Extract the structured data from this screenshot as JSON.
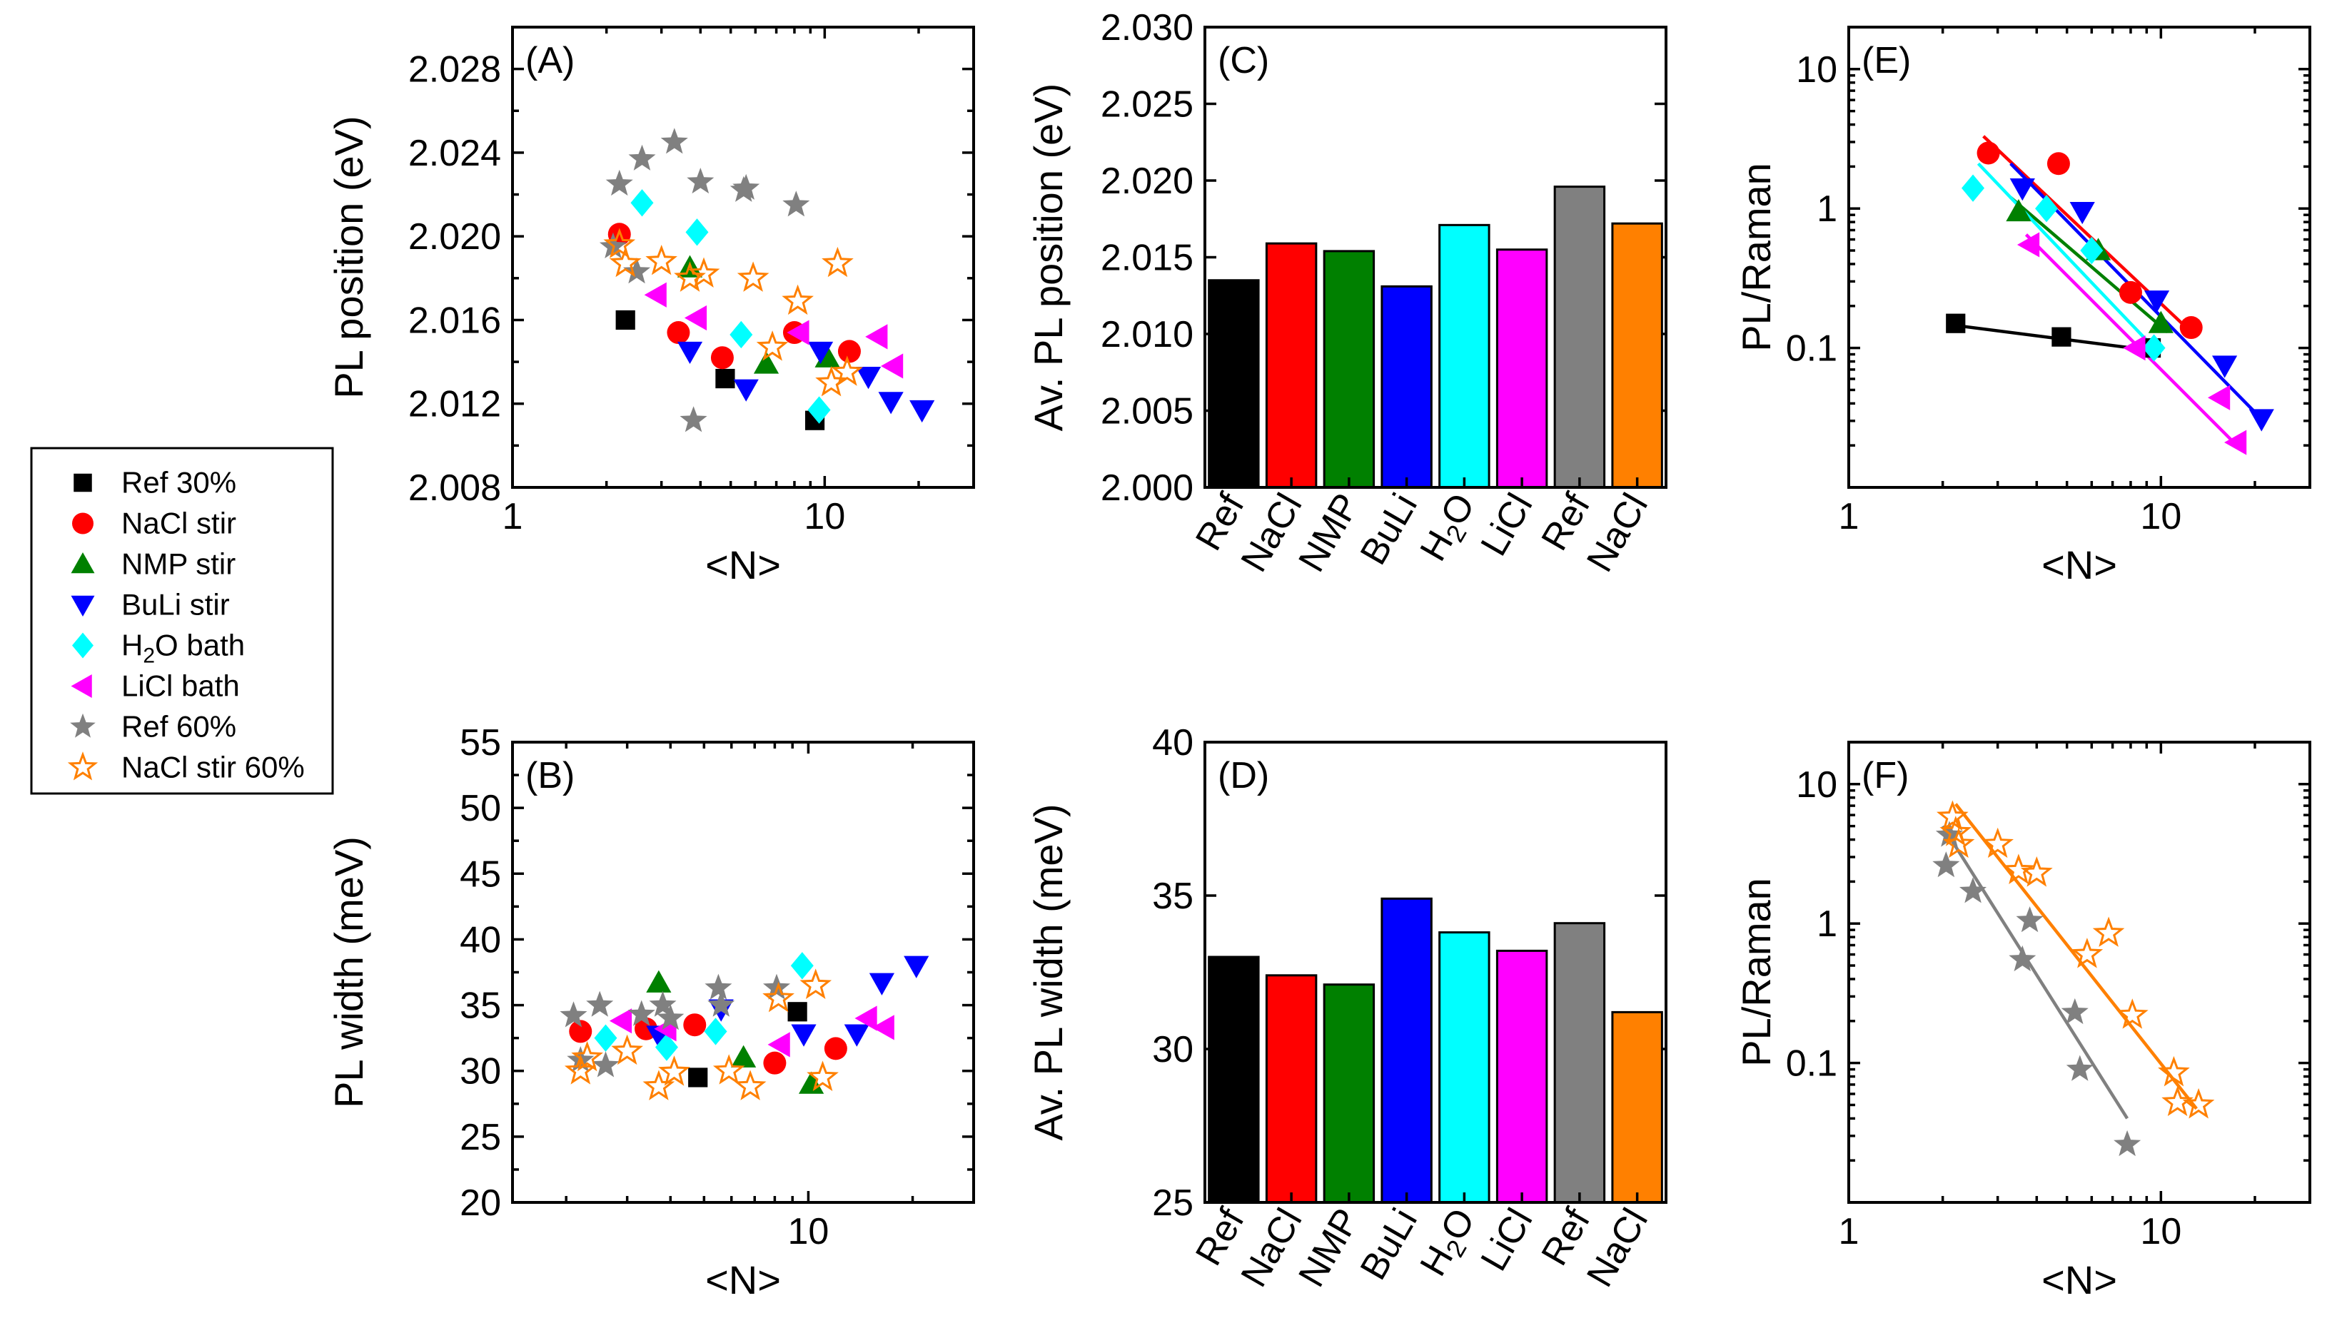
{
  "legend": {
    "series": [
      {
        "key": "ref30",
        "label": "Ref 30%",
        "color": "#000000",
        "marker": "square"
      },
      {
        "key": "nacl",
        "label": "NaCl stir",
        "color": "#ff0000",
        "marker": "circle"
      },
      {
        "key": "nmp",
        "label": "NMP stir",
        "color": "#008000",
        "marker": "triangle-up"
      },
      {
        "key": "buli",
        "label": "BuLi stir",
        "color": "#0000ff",
        "marker": "triangle-down"
      },
      {
        "key": "h2o",
        "label": "H₂O bath",
        "color": "#00ffff",
        "marker": "diamond"
      },
      {
        "key": "licl",
        "label": "LiCl bath",
        "color": "#ff00ff",
        "marker": "triangle-left"
      },
      {
        "key": "ref60",
        "label": "Ref 60%",
        "color": "#808080",
        "marker": "star"
      },
      {
        "key": "nacl60",
        "label": "NaCl stir 60%",
        "color": "#ff8000",
        "marker": "star-open"
      }
    ]
  },
  "chart_data": [
    {
      "panel": "A",
      "type": "scatter",
      "xscale": "log",
      "xlim": [
        1,
        30
      ],
      "ylim": [
        2.008,
        2.03
      ],
      "xticks": [
        1,
        10
      ],
      "xtick_labels": [
        "1",
        "10"
      ],
      "yticks": [
        2.008,
        2.012,
        2.016,
        2.02,
        2.024,
        2.028
      ],
      "ytick_labels": [
        "2.008",
        "2.012",
        "2.016",
        "2.020",
        "2.024",
        "2.028"
      ],
      "xlabel": "<N>",
      "ylabel": "PL position (eV)",
      "label": "(A)",
      "series": [
        {
          "key": "ref30",
          "points": [
            [
              2.3,
              2.016
            ],
            [
              4.8,
              2.0132
            ],
            [
              9.3,
              2.0112
            ]
          ]
        },
        {
          "key": "nacl",
          "points": [
            [
              2.2,
              2.0201
            ],
            [
              3.4,
              2.0154
            ],
            [
              4.7,
              2.0142
            ],
            [
              8.0,
              2.0154
            ],
            [
              12.0,
              2.0145
            ]
          ]
        },
        {
          "key": "nmp",
          "points": [
            [
              3.7,
              2.0185
            ],
            [
              6.5,
              2.0139
            ],
            [
              10.2,
              2.0142
            ]
          ]
        },
        {
          "key": "buli",
          "points": [
            [
              3.7,
              2.0145
            ],
            [
              5.6,
              2.0127
            ],
            [
              9.7,
              2.0145
            ],
            [
              13.8,
              2.0133
            ],
            [
              16.3,
              2.0121
            ],
            [
              20.5,
              2.0117
            ]
          ]
        },
        {
          "key": "h2o",
          "points": [
            [
              2.6,
              2.0216
            ],
            [
              3.9,
              2.0202
            ],
            [
              5.4,
              2.0153
            ],
            [
              9.6,
              2.0117
            ]
          ]
        },
        {
          "key": "licl",
          "points": [
            [
              2.9,
              2.0172
            ],
            [
              3.9,
              2.0161
            ],
            [
              8.3,
              2.0154
            ],
            [
              14.8,
              2.0152
            ],
            [
              16.6,
              2.0138
            ]
          ]
        },
        {
          "key": "ref60",
          "points": [
            [
              2.1,
              2.0195
            ],
            [
              2.2,
              2.0225
            ],
            [
              2.5,
              2.0183
            ],
            [
              2.6,
              2.0237
            ],
            [
              3.3,
              2.0245
            ],
            [
              3.8,
              2.0112
            ],
            [
              4.0,
              2.0226
            ],
            [
              5.5,
              2.0222
            ],
            [
              5.6,
              2.0223
            ],
            [
              8.1,
              2.0215
            ]
          ]
        },
        {
          "key": "nacl60",
          "points": [
            [
              2.2,
              2.0196
            ],
            [
              2.3,
              2.0187
            ],
            [
              3.0,
              2.0188
            ],
            [
              3.7,
              2.018
            ],
            [
              4.1,
              2.0182
            ],
            [
              5.9,
              2.018
            ],
            [
              6.8,
              2.0147
            ],
            [
              8.2,
              2.0169
            ],
            [
              10.5,
              2.013
            ],
            [
              11.0,
              2.0187
            ],
            [
              11.8,
              2.0135
            ]
          ]
        }
      ]
    },
    {
      "panel": "B",
      "type": "scatter",
      "xscale": "log",
      "xlim": [
        1.4,
        30
      ],
      "ylim": [
        20,
        55
      ],
      "xticks": [
        10
      ],
      "xtick_labels": [
        "10"
      ],
      "yticks": [
        20,
        25,
        30,
        35,
        40,
        45,
        50,
        55
      ],
      "ytick_labels": [
        "20",
        "25",
        "30",
        "35",
        "40",
        "45",
        "50",
        "55"
      ],
      "xlabel": "<N>",
      "ylabel": "PL width (meV)",
      "label": "(B)",
      "series": [
        {
          "key": "ref30",
          "points": [
            [
              4.8,
              29.5
            ],
            [
              9.3,
              34.5
            ]
          ]
        },
        {
          "key": "nacl",
          "points": [
            [
              2.2,
              33.0
            ],
            [
              3.4,
              33.2
            ],
            [
              4.7,
              33.5
            ],
            [
              8.0,
              30.6
            ],
            [
              12.0,
              31.7
            ]
          ]
        },
        {
          "key": "nmp",
          "points": [
            [
              3.7,
              36.7
            ],
            [
              6.5,
              31.0
            ],
            [
              10.2,
              29.0
            ]
          ]
        },
        {
          "key": "buli",
          "points": [
            [
              3.7,
              32.7
            ],
            [
              5.6,
              34.7
            ],
            [
              9.7,
              32.8
            ],
            [
              13.8,
              32.8
            ],
            [
              16.3,
              36.7
            ],
            [
              20.5,
              38.0
            ]
          ]
        },
        {
          "key": "h2o",
          "points": [
            [
              2.6,
              32.5
            ],
            [
              3.9,
              31.8
            ],
            [
              5.4,
              33.0
            ],
            [
              9.6,
              38.0
            ]
          ]
        },
        {
          "key": "licl",
          "points": [
            [
              2.9,
              33.8
            ],
            [
              3.9,
              33.2
            ],
            [
              8.3,
              32.0
            ],
            [
              14.8,
              34.0
            ],
            [
              16.6,
              33.3
            ]
          ]
        },
        {
          "key": "ref60",
          "points": [
            [
              2.1,
              34.2
            ],
            [
              2.2,
              30.8
            ],
            [
              2.5,
              35.0
            ],
            [
              2.6,
              30.4
            ],
            [
              3.3,
              34.3
            ],
            [
              3.8,
              35.0
            ],
            [
              4.0,
              34.0
            ],
            [
              5.5,
              36.3
            ],
            [
              5.6,
              35.0
            ],
            [
              8.1,
              36.3
            ]
          ]
        },
        {
          "key": "nacl60",
          "points": [
            [
              2.2,
              30.0
            ],
            [
              2.3,
              31.0
            ],
            [
              3.0,
              31.5
            ],
            [
              3.7,
              28.8
            ],
            [
              4.1,
              29.9
            ],
            [
              5.9,
              30.0
            ],
            [
              6.8,
              28.8
            ],
            [
              8.2,
              35.5
            ],
            [
              10.5,
              36.5
            ],
            [
              11.0,
              29.5
            ]
          ]
        }
      ]
    },
    {
      "panel": "C",
      "type": "bar",
      "ylim": [
        2.0,
        2.03
      ],
      "yticks": [
        2.0,
        2.005,
        2.01,
        2.015,
        2.02,
        2.025,
        2.03
      ],
      "ytick_labels": [
        "2.000",
        "2.005",
        "2.010",
        "2.015",
        "2.020",
        "2.025",
        "2.030"
      ],
      "categories": [
        "Ref",
        "NaCl",
        "NMP",
        "BuLi",
        "H₂O",
        "LiCl",
        "Ref",
        "NaCl"
      ],
      "values": [
        2.0135,
        2.0159,
        2.0154,
        2.0131,
        2.0171,
        2.0155,
        2.0196,
        2.0172
      ],
      "colors": [
        "#000000",
        "#ff0000",
        "#008000",
        "#0000ff",
        "#00ffff",
        "#ff00ff",
        "#808080",
        "#ff8000"
      ],
      "ylabel": "Av. PL position (eV)",
      "label": "(C)"
    },
    {
      "panel": "D",
      "type": "bar",
      "ylim": [
        25,
        40
      ],
      "yticks": [
        25,
        30,
        35,
        40
      ],
      "ytick_labels": [
        "25",
        "30",
        "35",
        "40"
      ],
      "categories": [
        "Ref",
        "NaCl",
        "NMP",
        "BuLi",
        "H₂O",
        "LiCl",
        "Ref",
        "NaCl"
      ],
      "values": [
        33.0,
        32.4,
        32.1,
        34.9,
        33.8,
        33.2,
        34.1,
        31.2
      ],
      "colors": [
        "#000000",
        "#ff0000",
        "#008000",
        "#0000ff",
        "#00ffff",
        "#ff00ff",
        "#808080",
        "#ff8000"
      ],
      "ylabel": "Av. PL width (meV)",
      "label": "(D)"
    },
    {
      "panel": "E",
      "type": "scatter",
      "xscale": "log",
      "yscale": "log",
      "xlim": [
        1,
        30
      ],
      "ylim": [
        0.01,
        20
      ],
      "xticks": [
        1,
        10
      ],
      "xtick_labels": [
        "1",
        "10"
      ],
      "yticks": [
        0.1,
        1,
        10
      ],
      "ytick_labels": [
        "0.1",
        "1",
        "10"
      ],
      "xlabel": "<N>",
      "ylabel": "PL/Raman",
      "label": "(E)",
      "series": [
        {
          "key": "ref30",
          "points": [
            [
              2.2,
              0.15
            ],
            [
              4.8,
              0.12
            ],
            [
              9.3,
              0.1
            ]
          ],
          "fit": [
            [
              2.2,
              0.145
            ],
            [
              9.3,
              0.096
            ]
          ]
        },
        {
          "key": "nacl",
          "points": [
            [
              2.8,
              2.5
            ],
            [
              4.7,
              2.1
            ],
            [
              8.0,
              0.25
            ],
            [
              12.5,
              0.14
            ]
          ],
          "fit": [
            [
              2.7,
              3.3
            ],
            [
              12.5,
              0.13
            ]
          ]
        },
        {
          "key": "nmp",
          "points": [
            [
              3.5,
              0.95
            ],
            [
              6.3,
              0.5
            ],
            [
              10.0,
              0.15
            ]
          ],
          "fit": [
            [
              3.3,
              1.2
            ],
            [
              10.5,
              0.13
            ]
          ]
        },
        {
          "key": "buli",
          "points": [
            [
              3.6,
              1.4
            ],
            [
              5.6,
              0.95
            ],
            [
              9.7,
              0.22
            ],
            [
              16.0,
              0.075
            ],
            [
              21.0,
              0.031
            ]
          ],
          "fit": [
            [
              3.3,
              2.1
            ],
            [
              21.0,
              0.031
            ]
          ]
        },
        {
          "key": "h2o",
          "points": [
            [
              2.5,
              1.4
            ],
            [
              4.3,
              1.0
            ],
            [
              6.0,
              0.5
            ],
            [
              9.5,
              0.1
            ]
          ],
          "fit": [
            [
              2.6,
              2.1
            ],
            [
              9.5,
              0.1
            ]
          ]
        },
        {
          "key": "licl",
          "points": [
            [
              3.8,
              0.55
            ],
            [
              8.3,
              0.1
            ],
            [
              15.5,
              0.044
            ],
            [
              17.5,
              0.021
            ]
          ],
          "fit": [
            [
              3.7,
              0.65
            ],
            [
              17.5,
              0.02
            ]
          ]
        }
      ]
    },
    {
      "panel": "F",
      "type": "scatter",
      "xscale": "log",
      "yscale": "log",
      "xlim": [
        1,
        30
      ],
      "ylim": [
        0.01,
        20
      ],
      "xticks": [
        1,
        10
      ],
      "xtick_labels": [
        "1",
        "10"
      ],
      "yticks": [
        0.1,
        1,
        10
      ],
      "ytick_labels": [
        "0.1",
        "1",
        "10"
      ],
      "xlabel": "<N>",
      "ylabel": "PL/Raman",
      "label": "(F)",
      "series": [
        {
          "key": "ref60",
          "points": [
            [
              2.05,
              2.6
            ],
            [
              2.1,
              4.3
            ],
            [
              2.5,
              1.7
            ],
            [
              3.6,
              0.55
            ],
            [
              3.8,
              1.05
            ],
            [
              5.3,
              0.23
            ],
            [
              5.5,
              0.09
            ],
            [
              7.8,
              0.026
            ]
          ],
          "fit": [
            [
              2.0,
              5.0
            ],
            [
              7.8,
              0.04
            ]
          ]
        },
        {
          "key": "nacl60",
          "points": [
            [
              2.15,
              5.8
            ],
            [
              2.2,
              4.5
            ],
            [
              2.25,
              3.7
            ],
            [
              3.0,
              3.7
            ],
            [
              3.5,
              2.4
            ],
            [
              4.0,
              2.3
            ],
            [
              5.8,
              0.6
            ],
            [
              6.8,
              0.85
            ],
            [
              8.1,
              0.22
            ],
            [
              11.0,
              0.085
            ],
            [
              11.3,
              0.052
            ],
            [
              13.2,
              0.05
            ]
          ],
          "fit": [
            [
              2.2,
              7.2
            ],
            [
              13.0,
              0.047
            ]
          ]
        }
      ]
    }
  ]
}
